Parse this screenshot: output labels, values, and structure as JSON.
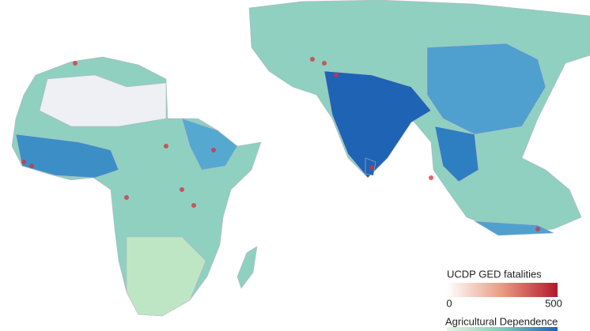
{
  "legend": {
    "fatalities": {
      "title": "UCDP GED fatalities",
      "range": [
        0,
        500
      ],
      "ticks": [
        0,
        500
      ]
    },
    "dependence": {
      "title": "Agricultural Dependence"
    }
  }
}
